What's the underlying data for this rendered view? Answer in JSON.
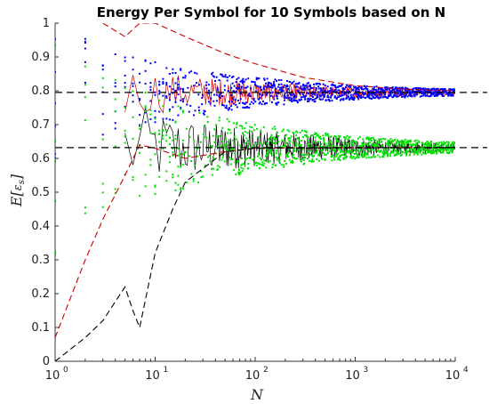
{
  "chart_data": {
    "type": "scatter",
    "title": "Energy Per Symbol for 10 Symbols based on N",
    "xlabel": "N",
    "ylabel": "E[E_s]",
    "xscale": "log",
    "xlim": [
      1,
      10000
    ],
    "ylim": [
      0,
      1
    ],
    "x_ticks": [
      {
        "base": "10",
        "exp": "0"
      },
      {
        "base": "10",
        "exp": "1"
      },
      {
        "base": "10",
        "exp": "2"
      },
      {
        "base": "10",
        "exp": "3"
      },
      {
        "base": "10",
        "exp": "4"
      }
    ],
    "y_ticks": [
      "0",
      "0.1",
      "0.2",
      "0.3",
      "0.4",
      "0.5",
      "0.6",
      "0.7",
      "0.8",
      "0.9",
      "1"
    ],
    "reference_lines": [
      {
        "y": 0.795,
        "color": "#000000",
        "style": "dashed"
      },
      {
        "y": 0.632,
        "color": "#000000",
        "style": "dashed"
      }
    ],
    "series": [
      {
        "color": "#0000ff",
        "kind": "points",
        "center": 0.795,
        "start_spread": 0.2,
        "decay": 0.65
      },
      {
        "color": "#00e000",
        "kind": "points",
        "center": 0.632,
        "start_spread": 0.32,
        "decay": 0.65
      },
      {
        "color": "#cc0000",
        "kind": "dashed-line",
        "points": [
          [
            1,
            0.07
          ],
          [
            2,
            0.3
          ],
          [
            3,
            0.42
          ],
          [
            5,
            0.55
          ],
          [
            7,
            0.64
          ],
          [
            10,
            0.63
          ],
          [
            20,
            0.6
          ],
          [
            50,
            0.62
          ],
          [
            100,
            0.63
          ],
          [
            1000,
            0.632
          ],
          [
            10000,
            0.632
          ]
        ]
      },
      {
        "color": "#cc0000",
        "kind": "upper-envelope",
        "points": [
          [
            3,
            1.0
          ],
          [
            5,
            0.96
          ],
          [
            7,
            1.0
          ],
          [
            10,
            1.0
          ],
          [
            20,
            0.96
          ],
          [
            50,
            0.91
          ],
          [
            100,
            0.88
          ],
          [
            300,
            0.84
          ],
          [
            1000,
            0.815
          ],
          [
            3000,
            0.805
          ],
          [
            10000,
            0.8
          ]
        ]
      },
      {
        "color": "#000000",
        "kind": "dashed-line",
        "points": [
          [
            1,
            0.0
          ],
          [
            2,
            0.07
          ],
          [
            3,
            0.12
          ],
          [
            5,
            0.22
          ],
          [
            6,
            0.15
          ],
          [
            7,
            0.1
          ],
          [
            10,
            0.32
          ],
          [
            15,
            0.45
          ],
          [
            20,
            0.53
          ],
          [
            50,
            0.62
          ],
          [
            100,
            0.63
          ],
          [
            10000,
            0.632
          ]
        ]
      },
      {
        "color": "#000000",
        "kind": "band",
        "center": 0.632,
        "start_spread": 0.14,
        "decay": 0.6
      },
      {
        "color": "#cc0000",
        "kind": "band",
        "center": 0.795,
        "start_spread": 0.08,
        "decay": 0.6
      }
    ],
    "grid": false,
    "legend": "none"
  }
}
